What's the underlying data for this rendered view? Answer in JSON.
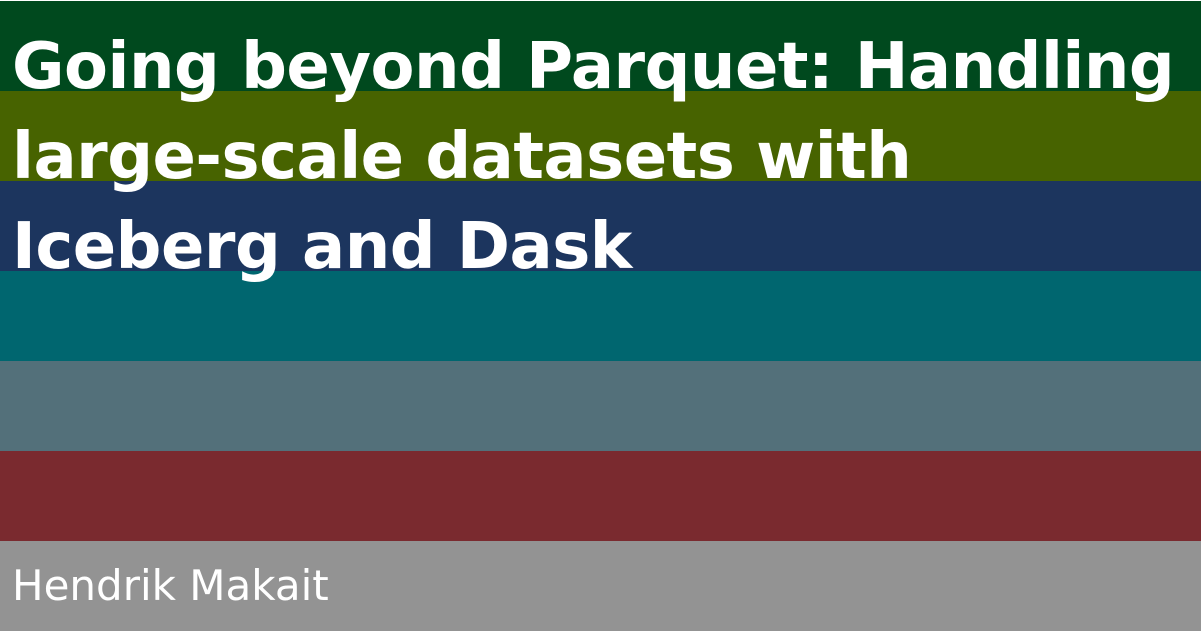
{
  "title": "Going beyond Parquet: Handling large-scale datasets with Iceberg and Dask",
  "author": "Hendrik Makait",
  "colors": {
    "stripe_1": "#00491E",
    "stripe_2": "#476300",
    "stripe_3": "#1C355E",
    "stripe_4": "#00666F",
    "stripe_5": "#53707A",
    "stripe_6": "#7A2A2F",
    "stripe_7": "#939393",
    "text": "#FFFFFF"
  }
}
